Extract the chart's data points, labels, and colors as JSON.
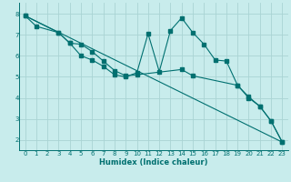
{
  "xlabel": "Humidex (Indice chaleur)",
  "bg_color": "#c8ecec",
  "grid_color": "#aad4d4",
  "line_color": "#007070",
  "xlim": [
    -0.5,
    23.5
  ],
  "ylim": [
    1.5,
    8.5
  ],
  "xticks": [
    0,
    1,
    2,
    3,
    4,
    5,
    6,
    7,
    8,
    9,
    10,
    11,
    12,
    13,
    14,
    15,
    16,
    17,
    18,
    19,
    20,
    21,
    22,
    23
  ],
  "yticks": [
    2,
    3,
    4,
    5,
    6,
    7,
    8
  ],
  "line1_x": [
    0,
    1,
    3,
    4,
    5,
    6,
    7,
    8,
    9,
    10,
    11,
    12,
    13,
    14,
    15,
    16,
    17,
    18,
    19,
    20,
    21,
    22,
    23
  ],
  "line1_y": [
    7.9,
    7.4,
    7.1,
    6.6,
    6.0,
    5.8,
    5.5,
    5.1,
    5.0,
    5.2,
    7.05,
    5.25,
    7.2,
    7.8,
    7.1,
    6.55,
    5.8,
    5.75,
    4.6,
    4.0,
    3.6,
    2.9,
    1.9
  ],
  "line2_x": [
    0,
    3,
    4,
    5,
    6,
    7,
    8,
    9,
    10,
    14,
    15,
    19,
    20,
    21,
    22,
    23
  ],
  "line2_y": [
    7.9,
    7.1,
    6.6,
    6.55,
    6.2,
    5.75,
    5.3,
    5.05,
    5.1,
    5.35,
    5.05,
    4.6,
    4.05,
    3.6,
    2.9,
    1.9
  ],
  "line3_x": [
    0,
    23
  ],
  "line3_y": [
    7.9,
    1.9
  ]
}
